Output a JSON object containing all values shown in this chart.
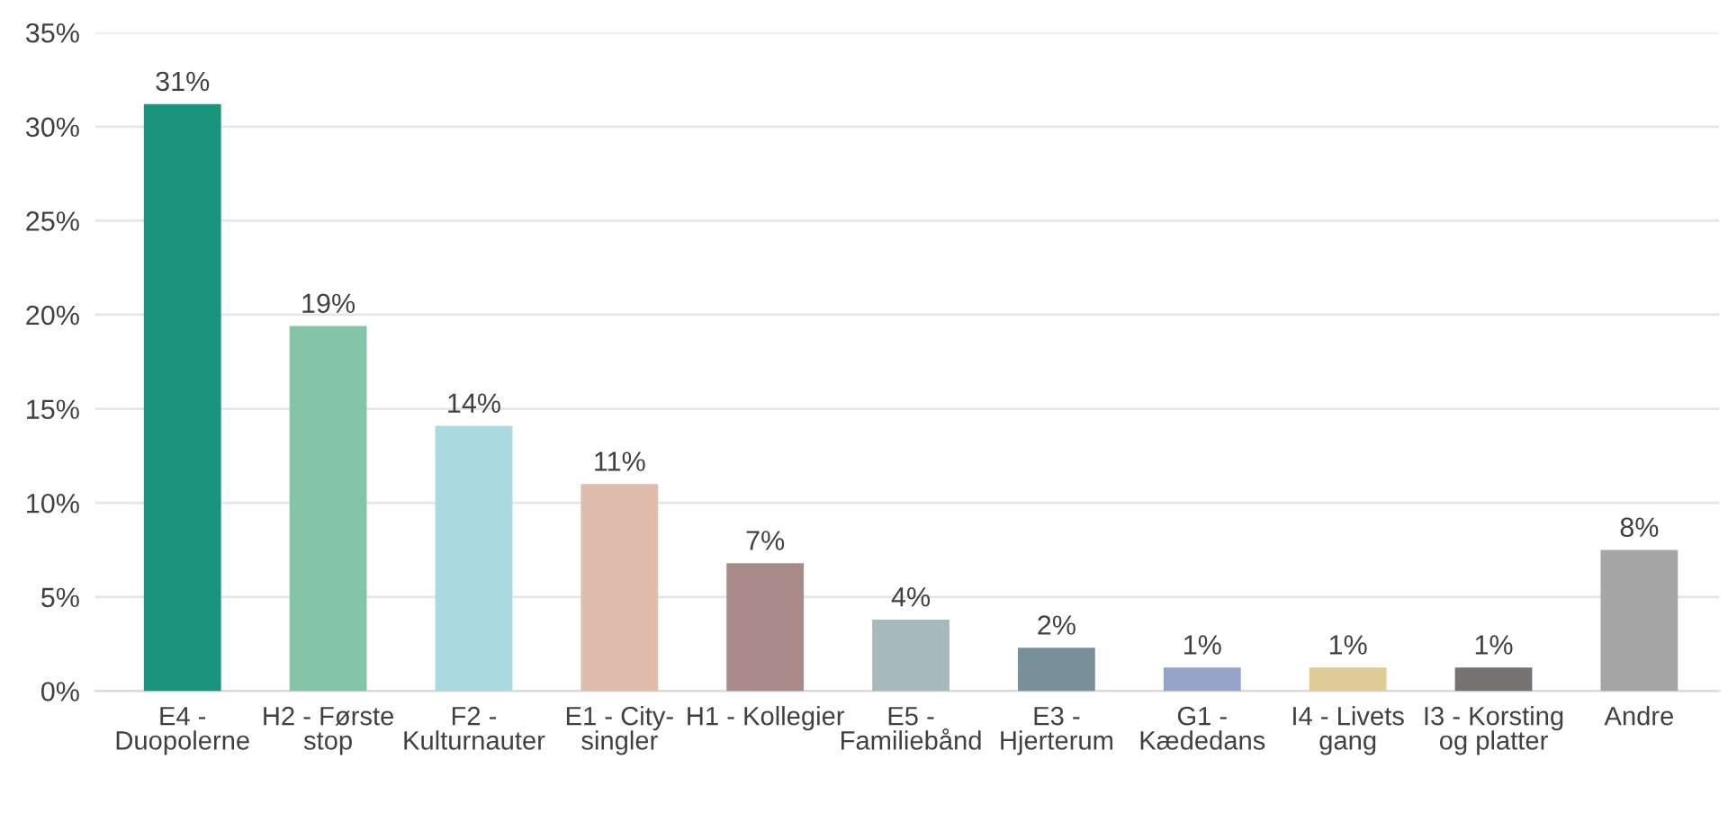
{
  "chart_data": {
    "type": "bar",
    "categories": [
      "E4 -\nDuopolerne",
      "H2 - Første\nstop",
      "F2 -\nKulturnauter",
      "E1 - City-\nsingler",
      "H1 - Kollegier",
      "E5 -\nFamiliebånd",
      "E3 -\nHjerterum",
      "G1 -\nKædedans",
      "I4 - Livets\ngang",
      "I3 - Korsting\nog platter",
      "Andre"
    ],
    "values": [
      31.2,
      19.4,
      14.1,
      11.0,
      6.8,
      3.8,
      2.3,
      1.25,
      1.25,
      1.25,
      7.5
    ],
    "value_labels": [
      "31%",
      "19%",
      "14%",
      "11%",
      "7%",
      "4%",
      "2%",
      "1%",
      "1%",
      "1%",
      "8%"
    ],
    "colors": [
      "#19957b",
      "#84c5a8",
      "#aadadf",
      "#dfbcab",
      "#a88a89",
      "#a6b9bc",
      "#768f99",
      "#96a3c8",
      "#dfcb97",
      "#767272",
      "#a6a6a6"
    ],
    "ylim": [
      0,
      35
    ],
    "yticks": [
      {
        "value": 0,
        "label": "0%"
      },
      {
        "value": 5,
        "label": "5%"
      },
      {
        "value": 10,
        "label": "10%"
      },
      {
        "value": 15,
        "label": "15%"
      },
      {
        "value": 20,
        "label": "20%"
      },
      {
        "value": 25,
        "label": "25%"
      },
      {
        "value": 30,
        "label": "30%"
      },
      {
        "value": 35,
        "label": "35%"
      }
    ],
    "grid": "y"
  }
}
